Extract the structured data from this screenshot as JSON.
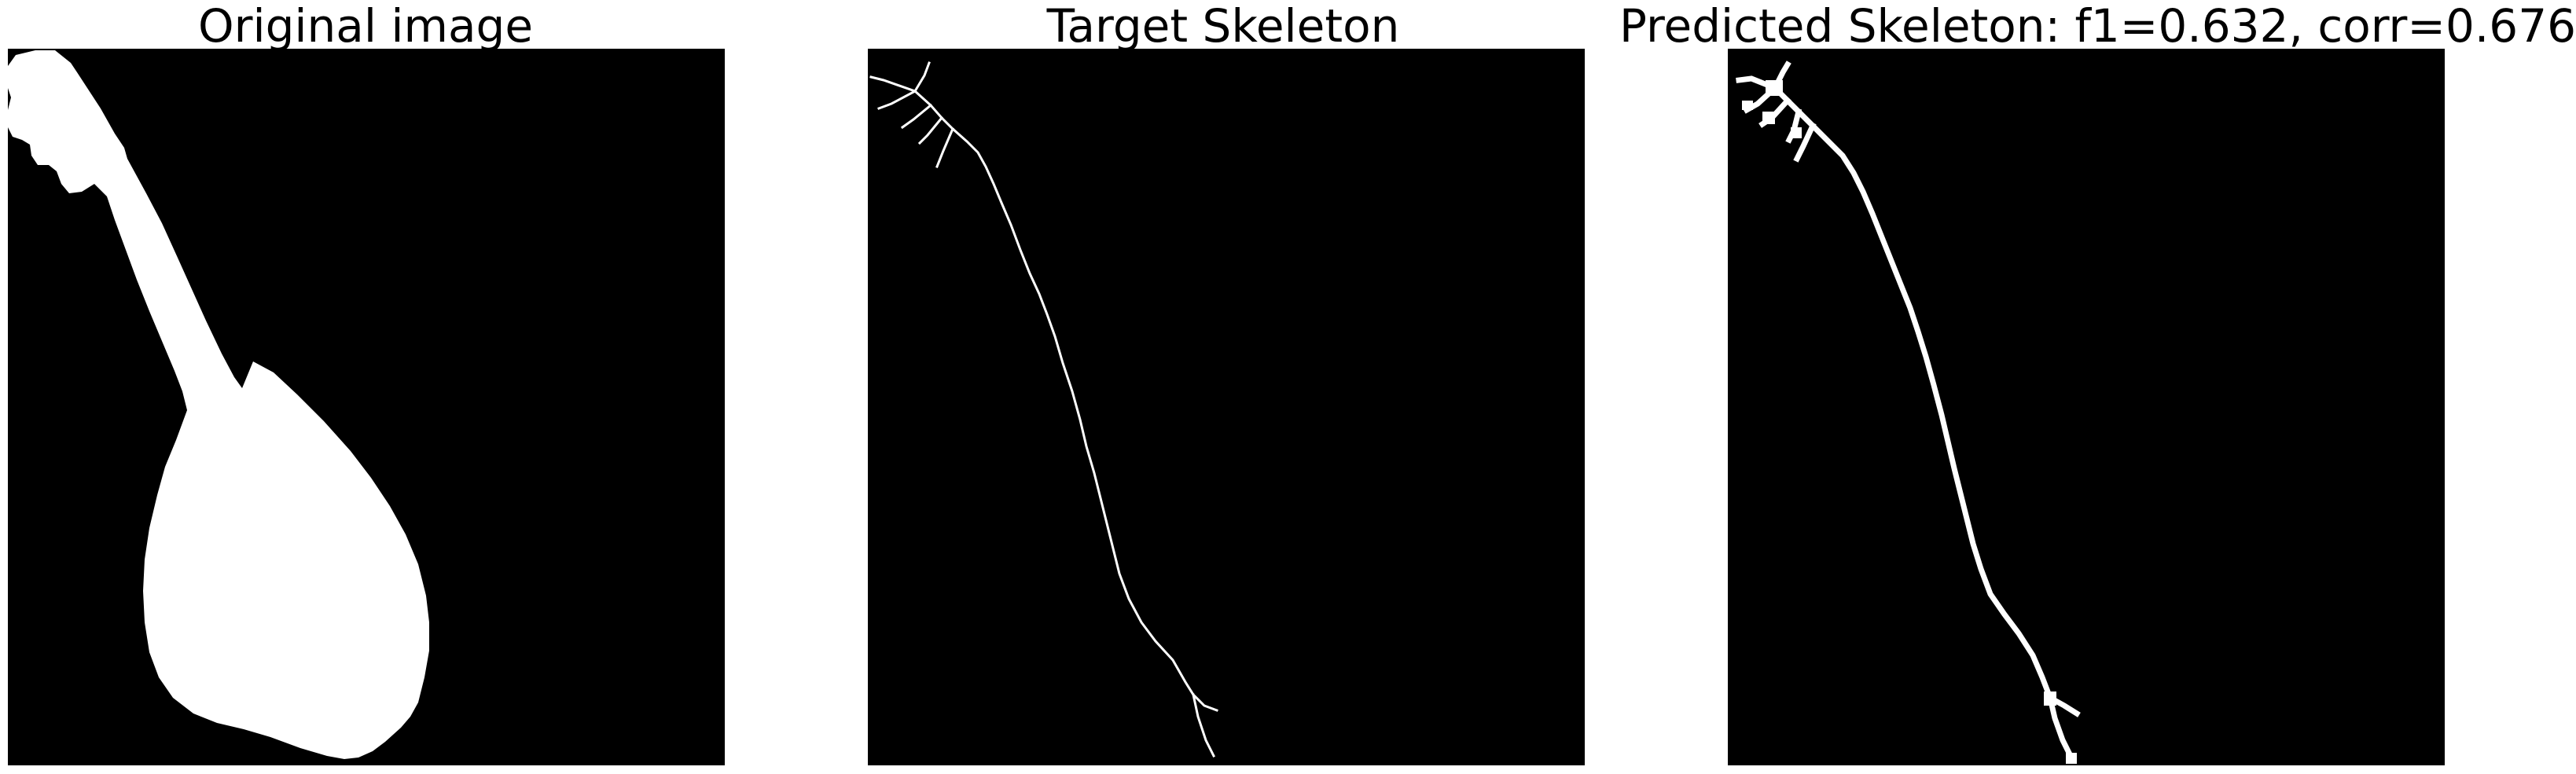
{
  "panels": [
    {
      "title": "Original image"
    },
    {
      "title": "Target Skeleton"
    },
    {
      "title": "Predicted Skeleton: f1=0.632, corr=0.676"
    }
  ],
  "colors": {
    "background": "#000000",
    "foreground": "#ffffff",
    "page": "#ffffff"
  }
}
